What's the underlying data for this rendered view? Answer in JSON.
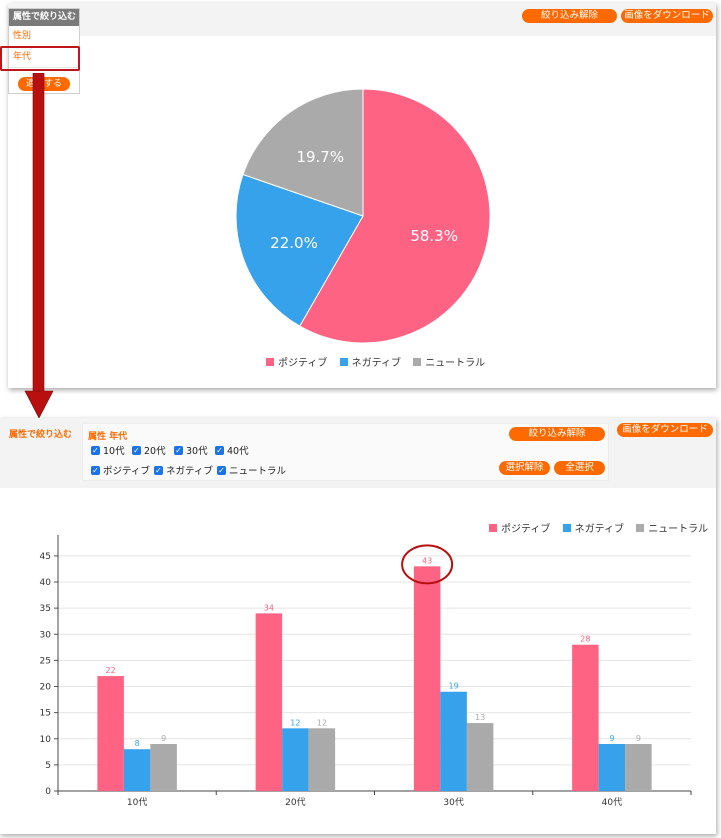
{
  "top_panel": {
    "filter_menu": {
      "title": "属性で絞り込む",
      "items": [
        "性別",
        "年代"
      ],
      "apply_label": "適用する"
    },
    "reset_label": "絞り込み解除",
    "download_label": "画像をダウンロード",
    "legend": [
      {
        "name": "ポジティブ",
        "color": "#ff6384"
      },
      {
        "name": "ネガティブ",
        "color": "#36a2eb"
      },
      {
        "name": "ニュートラル",
        "color": "#aaaaaa"
      }
    ]
  },
  "bottom_panel": {
    "filter_title": "属性で絞り込む",
    "section_label": "属性 年代",
    "age_options": [
      "10代",
      "20代",
      "30代",
      "40代"
    ],
    "sentiment_options": [
      "ポジティブ",
      "ネガティブ",
      "ニュートラル"
    ],
    "reset_label": "絞り込み解除",
    "download_label": "画像をダウンロード",
    "deselect_label": "選択解除",
    "select_all_label": "全選択",
    "legend": [
      {
        "name": "ポジティブ",
        "color": "#ff6384"
      },
      {
        "name": "ネガティブ",
        "color": "#36a2eb"
      },
      {
        "name": "ニュートラル",
        "color": "#aaaaaa"
      }
    ]
  },
  "annotation": {
    "arrow_color": "#b80f0f",
    "highlight_color": "#c0141b"
  },
  "chart_data": [
    {
      "type": "pie",
      "labels": [
        "ポジティブ",
        "ネガティブ",
        "ニュートラル"
      ],
      "values": [
        58.3,
        22.0,
        19.7
      ],
      "value_labels": [
        "58.3%",
        "22.0%",
        "19.7%"
      ],
      "colors": [
        "#ff6384",
        "#36a2eb",
        "#aaaaaa"
      ],
      "legend": "bottom"
    },
    {
      "type": "bar",
      "categories": [
        "10代",
        "20代",
        "30代",
        "40代"
      ],
      "series": [
        {
          "name": "ポジティブ",
          "color": "#ff6384",
          "values": [
            22,
            34,
            43,
            28
          ]
        },
        {
          "name": "ネガティブ",
          "color": "#36a2eb",
          "values": [
            8,
            12,
            19,
            9
          ]
        },
        {
          "name": "ニュートラル",
          "color": "#aaaaaa",
          "values": [
            9,
            12,
            13,
            9
          ]
        }
      ],
      "ylim": [
        0,
        49
      ],
      "yticks": [
        0,
        5,
        10,
        15,
        20,
        25,
        30,
        35,
        40,
        45
      ],
      "grid": true,
      "legend": "top-right"
    }
  ]
}
